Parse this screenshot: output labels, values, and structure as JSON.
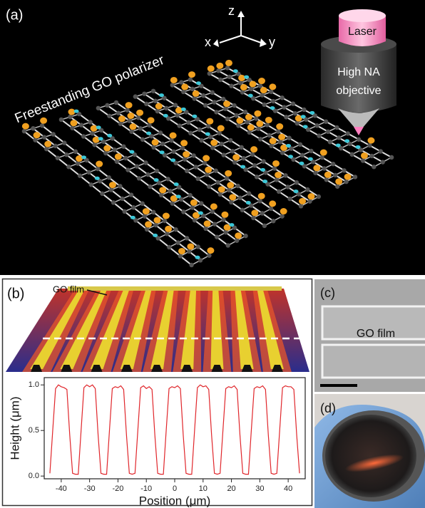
{
  "panels": {
    "a": {
      "label": "(a)",
      "caption": "Freestanding GO polarizer",
      "axes": {
        "z": "z",
        "x": "x",
        "y": "y"
      },
      "laser": "Laser",
      "objective": [
        "High NA",
        "objective"
      ]
    },
    "b": {
      "label": "(b)",
      "film_label": "GO film"
    },
    "c": {
      "label": "(c)",
      "film_label": "GO film"
    },
    "d": {
      "label": "(d)"
    }
  },
  "chart_data": {
    "type": "line",
    "xlabel": "Position (μm)",
    "ylabel": "Height (μm)",
    "color": "#e0262b",
    "x": [
      -44,
      -43,
      -42,
      -41,
      -40,
      -39,
      -38,
      -37,
      -36,
      -35,
      -34,
      -33,
      -32,
      -31,
      -30,
      -29,
      -28,
      -27,
      -26,
      -25,
      -24,
      -23,
      -22,
      -21,
      -20,
      -19,
      -18,
      -17,
      -16,
      -15,
      -14,
      -13,
      -12,
      -11,
      -10,
      -9,
      -8,
      -7,
      -6,
      -5,
      -4,
      -3,
      -2,
      -1,
      0,
      1,
      2,
      3,
      4,
      5,
      6,
      7,
      8,
      9,
      10,
      11,
      12,
      13,
      14,
      15,
      16,
      17,
      18,
      19,
      20,
      21,
      22,
      23,
      24,
      25,
      26,
      27,
      28,
      29,
      30,
      31,
      32,
      33,
      34,
      35,
      36,
      37,
      38,
      39,
      40,
      41,
      42,
      43,
      44
    ],
    "values": [
      0.03,
      0.5,
      0.96,
      1.0,
      0.98,
      0.97,
      0.95,
      0.45,
      0.03,
      0.02,
      0.02,
      0.5,
      0.97,
      1.0,
      0.98,
      1.0,
      0.96,
      0.45,
      0.03,
      0.02,
      0.02,
      0.5,
      0.96,
      0.98,
      0.97,
      0.99,
      0.95,
      0.45,
      0.03,
      0.02,
      0.03,
      0.5,
      0.97,
      0.99,
      0.96,
      0.98,
      0.95,
      0.45,
      0.03,
      0.02,
      0.02,
      0.5,
      0.96,
      0.98,
      0.97,
      0.99,
      0.96,
      0.45,
      0.03,
      0.02,
      0.02,
      0.5,
      0.97,
      1.0,
      0.98,
      0.99,
      0.95,
      0.45,
      0.03,
      0.02,
      0.03,
      0.5,
      0.96,
      0.98,
      0.97,
      0.99,
      0.95,
      0.45,
      0.03,
      0.02,
      0.02,
      0.5,
      0.96,
      0.98,
      0.97,
      0.99,
      0.95,
      0.45,
      0.03,
      0.02,
      0.03,
      0.5,
      0.97,
      0.99,
      0.98,
      0.98,
      0.95,
      0.45,
      0.03
    ],
    "xlim": [
      -46,
      46
    ],
    "ylim": [
      -0.03,
      1.08
    ],
    "xticks": [
      -40,
      -30,
      -20,
      -10,
      0,
      10,
      20,
      30,
      40
    ],
    "yticks": [
      {
        "value": 0,
        "label": "0.0"
      },
      0.5,
      {
        "value": 1,
        "label": "1.0"
      }
    ]
  }
}
